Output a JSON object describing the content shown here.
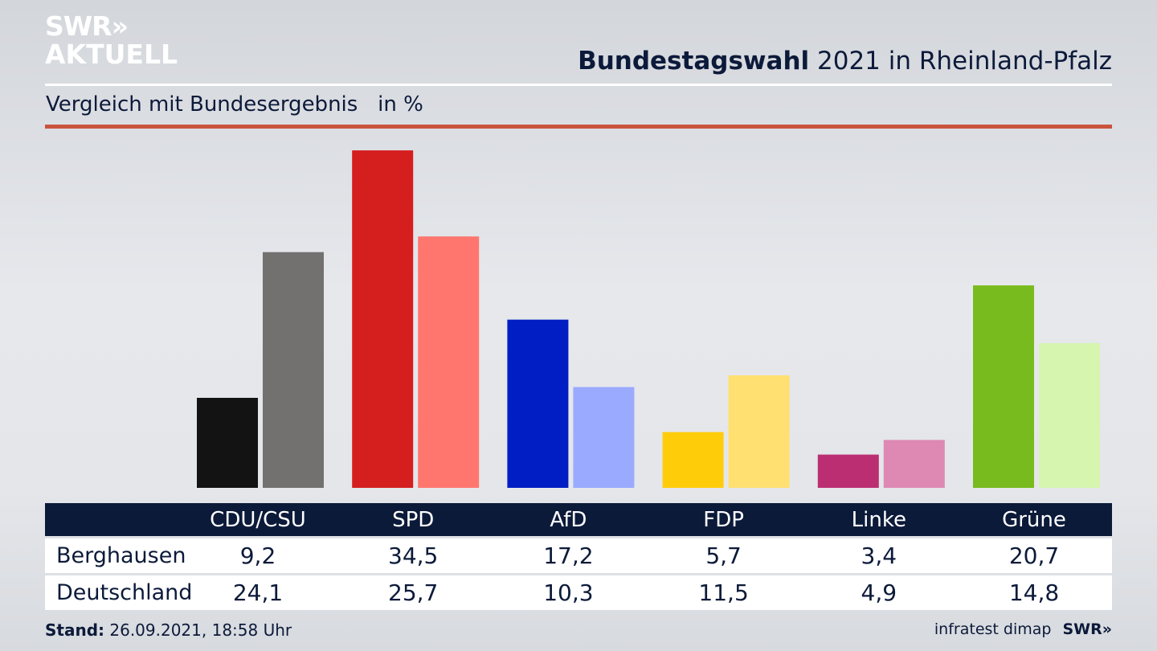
{
  "brand": {
    "logo_line1": "SWR»",
    "logo_line2": "AKTUELL",
    "footer_logo": "SWR»"
  },
  "header": {
    "title_bold": "Bundestagswahl",
    "title_rest": " 2021 in Rheinland-Pfalz",
    "subtitle": "Vergleich mit Bundesergebnis   in %"
  },
  "table": {
    "columns": [
      "CDU/CSU",
      "SPD",
      "AfD",
      "FDP",
      "Linke",
      "Grüne"
    ],
    "rows": [
      {
        "label": "Berghausen",
        "values": [
          "9,2",
          "34,5",
          "17,2",
          "5,7",
          "3,4",
          "20,7"
        ]
      },
      {
        "label": "Deutschland",
        "values": [
          "24,1",
          "25,7",
          "10,3",
          "11,5",
          "4,9",
          "14,8"
        ]
      }
    ]
  },
  "footer": {
    "stand_label": "Stand:",
    "stand_value": " 26.09.2021, 18:58 Uhr",
    "source": "infratest dimap"
  },
  "colors": {
    "accent_red_rule": "#c9533f",
    "navy": "#0c1a3a"
  },
  "chart_data": {
    "type": "bar",
    "title": "Bundestagswahl 2021 in Rheinland-Pfalz",
    "subtitle": "Vergleich mit Bundesergebnis in %",
    "xlabel": "",
    "ylabel": "%",
    "ylim": [
      0,
      35
    ],
    "grid": false,
    "categories": [
      "CDU/CSU",
      "SPD",
      "AfD",
      "FDP",
      "Linke",
      "Grüne"
    ],
    "series": [
      {
        "name": "Berghausen",
        "values": [
          9.2,
          34.5,
          17.2,
          5.7,
          3.4,
          20.7
        ],
        "colors": [
          "#131313",
          "#d51e1e",
          "#001ec4",
          "#ffcc0a",
          "#bb2f72",
          "#78bb1e"
        ]
      },
      {
        "name": "Deutschland",
        "values": [
          24.1,
          25.7,
          10.3,
          11.5,
          4.9,
          14.8
        ],
        "colors": [
          "#73716f",
          "#ff766f",
          "#9aaaff",
          "#ffe070",
          "#de88b4",
          "#d6f5ae"
        ]
      }
    ]
  }
}
